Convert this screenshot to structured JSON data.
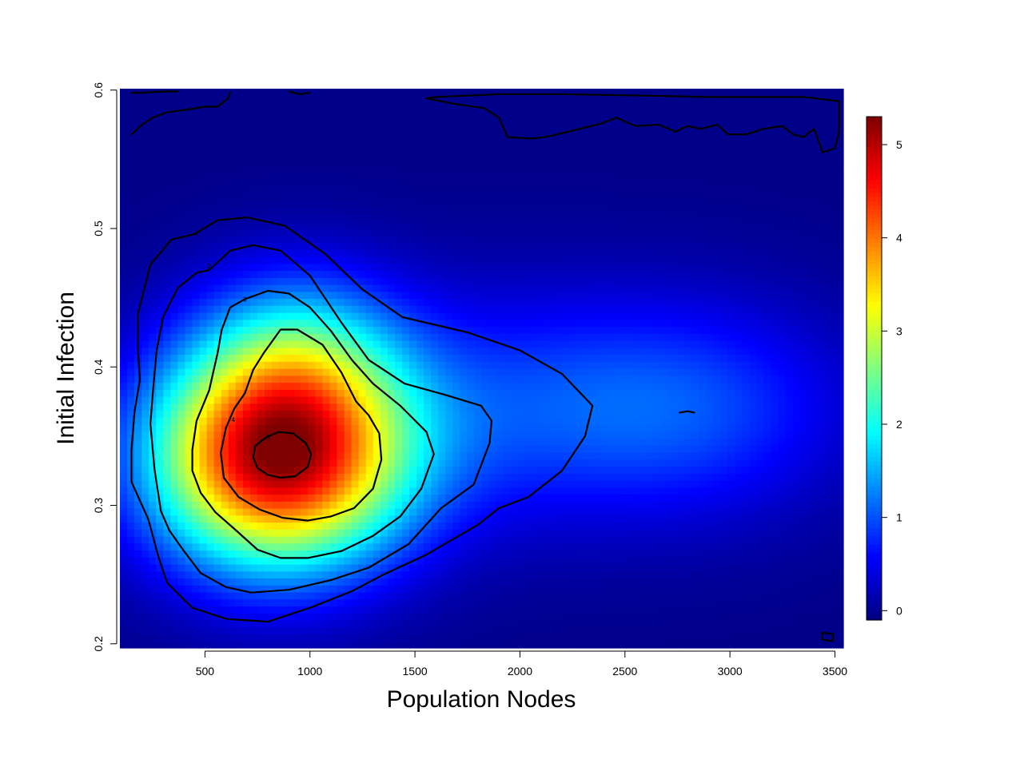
{
  "chart_data": {
    "type": "heatmap",
    "title": "",
    "xlabel": "Population Nodes",
    "ylabel": "Initial Infection",
    "xlim": [
      95,
      3540
    ],
    "ylim": [
      0.197,
      0.601
    ],
    "x_ticks": [
      500,
      1000,
      1500,
      2000,
      2500,
      3000,
      3500
    ],
    "y_ticks": [
      0.2,
      0.3,
      0.4,
      0.5,
      0.6
    ],
    "x_tick_labels": [
      "500",
      "1000",
      "1500",
      "2000",
      "2500",
      "3000",
      "3500"
    ],
    "y_tick_labels": [
      "0.2",
      "0.3",
      "0.4",
      "0.5",
      "0.6"
    ],
    "colorbar": {
      "range": [
        -0.1,
        5.3
      ],
      "ticks": [
        0,
        1,
        2,
        3,
        4,
        5
      ],
      "tick_labels": [
        "0",
        "1",
        "2",
        "3",
        "4",
        "5"
      ],
      "colormap": [
        "#00007F",
        "#0000FF",
        "#007FFF",
        "#00FFFF",
        "#7FFF7F",
        "#FFFF00",
        "#FF7F00",
        "#FF0000",
        "#7F0000"
      ]
    },
    "surface_peaks": [
      {
        "x": 850,
        "y": 0.335,
        "z": 5.3
      },
      {
        "x": 2800,
        "y": 0.37,
        "z": 1.0
      }
    ],
    "contour_levels": [
      0,
      1,
      2,
      3,
      4,
      5
    ],
    "contour_labels": [
      "0",
      "1",
      "2",
      "3",
      "4",
      "5"
    ],
    "contours": [
      {
        "level": 1,
        "points": [
          [
            450,
            0.496
          ],
          [
            560,
            0.506
          ],
          [
            700,
            0.508
          ],
          [
            880,
            0.502
          ],
          [
            1070,
            0.482
          ],
          [
            1250,
            0.456
          ],
          [
            1440,
            0.436
          ],
          [
            1750,
            0.425
          ],
          [
            2000,
            0.412
          ],
          [
            2200,
            0.395
          ],
          [
            2345,
            0.372
          ],
          [
            2310,
            0.35
          ],
          [
            2200,
            0.325
          ],
          [
            2040,
            0.306
          ],
          [
            1900,
            0.298
          ],
          [
            1800,
            0.286
          ],
          [
            1550,
            0.264
          ],
          [
            1350,
            0.25
          ],
          [
            1200,
            0.238
          ],
          [
            1000,
            0.226
          ],
          [
            800,
            0.216
          ],
          [
            600,
            0.218
          ],
          [
            440,
            0.226
          ],
          [
            320,
            0.244
          ],
          [
            280,
            0.262
          ],
          [
            230,
            0.29
          ],
          [
            150,
            0.317
          ],
          [
            150,
            0.34
          ],
          [
            165,
            0.368
          ],
          [
            190,
            0.391
          ],
          [
            180,
            0.414
          ],
          [
            180,
            0.438
          ],
          [
            240,
            0.474
          ],
          [
            340,
            0.492
          ],
          [
            450,
            0.496
          ]
        ]
      },
      {
        "level": 2,
        "points": [
          [
            520,
            0.47
          ],
          [
            620,
            0.484
          ],
          [
            730,
            0.488
          ],
          [
            860,
            0.484
          ],
          [
            1000,
            0.466
          ],
          [
            1150,
            0.432
          ],
          [
            1280,
            0.405
          ],
          [
            1450,
            0.388
          ],
          [
            1640,
            0.38
          ],
          [
            1815,
            0.372
          ],
          [
            1865,
            0.361
          ],
          [
            1855,
            0.345
          ],
          [
            1780,
            0.315
          ],
          [
            1625,
            0.298
          ],
          [
            1470,
            0.272
          ],
          [
            1280,
            0.255
          ],
          [
            1100,
            0.246
          ],
          [
            900,
            0.239
          ],
          [
            720,
            0.237
          ],
          [
            600,
            0.241
          ],
          [
            480,
            0.251
          ],
          [
            400,
            0.267
          ],
          [
            330,
            0.282
          ],
          [
            290,
            0.296
          ],
          [
            260,
            0.326
          ],
          [
            240,
            0.359
          ],
          [
            255,
            0.387
          ],
          [
            270,
            0.412
          ],
          [
            300,
            0.436
          ],
          [
            370,
            0.457
          ],
          [
            460,
            0.468
          ],
          [
            520,
            0.47
          ]
        ]
      },
      {
        "level": 3,
        "points": [
          [
            690,
            0.449
          ],
          [
            800,
            0.455
          ],
          [
            900,
            0.453
          ],
          [
            1000,
            0.443
          ],
          [
            1100,
            0.426
          ],
          [
            1200,
            0.405
          ],
          [
            1300,
            0.388
          ],
          [
            1430,
            0.372
          ],
          [
            1555,
            0.353
          ],
          [
            1590,
            0.337
          ],
          [
            1530,
            0.312
          ],
          [
            1430,
            0.292
          ],
          [
            1300,
            0.278
          ],
          [
            1150,
            0.267
          ],
          [
            990,
            0.262
          ],
          [
            860,
            0.262
          ],
          [
            750,
            0.268
          ],
          [
            640,
            0.283
          ],
          [
            550,
            0.295
          ],
          [
            480,
            0.309
          ],
          [
            440,
            0.325
          ],
          [
            440,
            0.34
          ],
          [
            460,
            0.361
          ],
          [
            520,
            0.383
          ],
          [
            560,
            0.41
          ],
          [
            580,
            0.427
          ],
          [
            620,
            0.443
          ],
          [
            690,
            0.449
          ]
        ]
      },
      {
        "level": 4,
        "points": [
          [
            780,
            0.41
          ],
          [
            860,
            0.427
          ],
          [
            940,
            0.427
          ],
          [
            1060,
            0.416
          ],
          [
            1150,
            0.396
          ],
          [
            1220,
            0.375
          ],
          [
            1280,
            0.365
          ],
          [
            1330,
            0.352
          ],
          [
            1340,
            0.333
          ],
          [
            1300,
            0.312
          ],
          [
            1210,
            0.298
          ],
          [
            1100,
            0.292
          ],
          [
            990,
            0.289
          ],
          [
            870,
            0.291
          ],
          [
            760,
            0.297
          ],
          [
            660,
            0.306
          ],
          [
            590,
            0.32
          ],
          [
            575,
            0.338
          ],
          [
            600,
            0.356
          ],
          [
            640,
            0.37
          ],
          [
            690,
            0.381
          ],
          [
            730,
            0.398
          ],
          [
            780,
            0.41
          ]
        ]
      },
      {
        "level": 5,
        "points": [
          [
            740,
            0.343
          ],
          [
            790,
            0.349
          ],
          [
            850,
            0.353
          ],
          [
            920,
            0.352
          ],
          [
            980,
            0.345
          ],
          [
            1005,
            0.337
          ],
          [
            990,
            0.328
          ],
          [
            930,
            0.321
          ],
          [
            860,
            0.32
          ],
          [
            800,
            0.322
          ],
          [
            750,
            0.327
          ],
          [
            730,
            0.335
          ],
          [
            740,
            0.343
          ]
        ]
      },
      {
        "level": 0,
        "points": [
          [
            1555,
            0.594
          ],
          [
            1600,
            0.595
          ],
          [
            1750,
            0.596
          ],
          [
            1900,
            0.597
          ],
          [
            2100,
            0.597
          ],
          [
            2200,
            0.597
          ],
          [
            2600,
            0.596
          ],
          [
            2900,
            0.595
          ],
          [
            3200,
            0.595
          ],
          [
            3350,
            0.595
          ],
          [
            3520,
            0.592
          ],
          [
            3520,
            0.57
          ],
          [
            3500,
            0.558
          ],
          [
            3440,
            0.555
          ],
          [
            3420,
            0.564
          ],
          [
            3400,
            0.572
          ],
          [
            3350,
            0.566
          ],
          [
            3300,
            0.568
          ],
          [
            3250,
            0.574
          ],
          [
            3160,
            0.572
          ],
          [
            3080,
            0.568
          ],
          [
            2990,
            0.568
          ],
          [
            2940,
            0.575
          ],
          [
            2860,
            0.572
          ],
          [
            2800,
            0.574
          ],
          [
            2740,
            0.57
          ],
          [
            2660,
            0.575
          ],
          [
            2550,
            0.574
          ],
          [
            2460,
            0.58
          ],
          [
            2390,
            0.576
          ],
          [
            2260,
            0.571
          ],
          [
            2120,
            0.566
          ],
          [
            2050,
            0.565
          ],
          [
            1940,
            0.566
          ],
          [
            1900,
            0.58
          ],
          [
            1830,
            0.587
          ],
          [
            1690,
            0.59
          ],
          [
            1555,
            0.594
          ]
        ]
      },
      {
        "level": 0,
        "points": [
          [
            150,
            0.568
          ],
          [
            200,
            0.575
          ],
          [
            250,
            0.58
          ],
          [
            320,
            0.584
          ],
          [
            420,
            0.586
          ],
          [
            500,
            0.588
          ],
          [
            560,
            0.588
          ],
          [
            610,
            0.594
          ],
          [
            620,
            0.598
          ]
        ]
      },
      {
        "level": 0,
        "points": [
          [
            150,
            0.598
          ],
          [
            200,
            0.598
          ],
          [
            300,
            0.599
          ],
          [
            370,
            0.599
          ]
        ]
      },
      {
        "level": 0,
        "points": [
          [
            900,
            0.599
          ],
          [
            950,
            0.597
          ],
          [
            1000,
            0.598
          ]
        ]
      },
      {
        "level": 0,
        "points": [
          [
            2760,
            0.367
          ],
          [
            2800,
            0.368
          ],
          [
            2830,
            0.367
          ]
        ]
      },
      {
        "level": 0,
        "points": [
          [
            3440,
            0.208
          ],
          [
            3490,
            0.207
          ],
          [
            3490,
            0.202
          ],
          [
            3440,
            0.203
          ],
          [
            3440,
            0.208
          ]
        ]
      }
    ]
  }
}
